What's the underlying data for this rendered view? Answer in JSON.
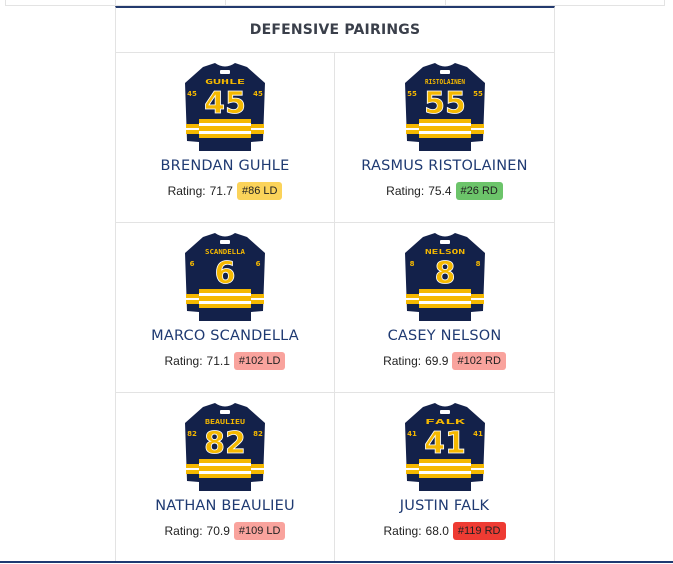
{
  "section": {
    "title": "DEFENSIVE PAIRINGS"
  },
  "rating_prefix": "Rating:",
  "colors": {
    "jersey_navy": "#13214a",
    "jersey_gold": "#f5b800",
    "jersey_white": "#ffffff",
    "name_blue": "#1f3a72",
    "badge_yellow": "#fbd35a",
    "badge_green": "#6cc46a",
    "badge_light_red": "#f9a39d",
    "badge_red": "#ee3b33"
  },
  "players": [
    {
      "name": "BRENDAN GUHLE",
      "jersey_name": "GUHLE",
      "number": "45",
      "rating": "71.7",
      "rank": "#86 LD",
      "rank_color": "#fbd35a"
    },
    {
      "name": "RASMUS RISTOLAINEN",
      "jersey_name": "RISTOLAINEN",
      "number": "55",
      "rating": "75.4",
      "rank": "#26 RD",
      "rank_color": "#6cc46a"
    },
    {
      "name": "MARCO SCANDELLA",
      "jersey_name": "SCANDELLA",
      "number": "6",
      "rating": "71.1",
      "rank": "#102 LD",
      "rank_color": "#f9a39d"
    },
    {
      "name": "CASEY NELSON",
      "jersey_name": "NELSON",
      "number": "8",
      "rating": "69.9",
      "rank": "#102 RD",
      "rank_color": "#f9a39d"
    },
    {
      "name": "NATHAN BEAULIEU",
      "jersey_name": "BEAULIEU",
      "number": "82",
      "rating": "70.9",
      "rank": "#109 LD",
      "rank_color": "#f9a39d"
    },
    {
      "name": "JUSTIN FALK",
      "jersey_name": "FALK",
      "number": "41",
      "rating": "68.0",
      "rank": "#119 RD",
      "rank_color": "#ee3b33"
    }
  ]
}
